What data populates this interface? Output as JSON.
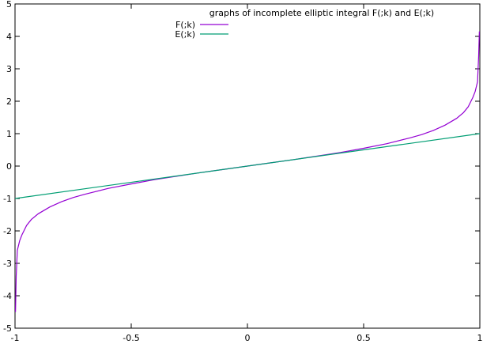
{
  "chart_data": {
    "type": "line",
    "title": "graphs of incomplete elliptic integral F(;k) and E(;k)",
    "xlabel": "",
    "ylabel": "",
    "xlim": [
      -1,
      1
    ],
    "ylim": [
      -5,
      5
    ],
    "grid": false,
    "legend_position": "top-center",
    "x_ticks": [
      -1,
      -0.5,
      0,
      0.5,
      1
    ],
    "x_tick_labels": [
      "-1",
      "-0.5",
      "0",
      "0.5",
      "1"
    ],
    "y_ticks": [
      -5,
      -4,
      -3,
      -2,
      -1,
      0,
      1,
      2,
      3,
      4,
      5
    ],
    "y_tick_labels": [
      "-5",
      "-4",
      "-3",
      "-2",
      "-1",
      "0",
      "1",
      "2",
      "3",
      "4",
      "5"
    ],
    "series": [
      {
        "name": "F(;k)",
        "color": "#9400d3",
        "x": [
          -0.998,
          -0.995,
          -0.99,
          -0.98,
          -0.97,
          -0.95,
          -0.93,
          -0.9,
          -0.85,
          -0.8,
          -0.75,
          -0.7,
          -0.6,
          -0.5,
          -0.4,
          -0.3,
          -0.2,
          -0.1,
          0,
          0.1,
          0.2,
          0.3,
          0.4,
          0.5,
          0.6,
          0.7,
          0.75,
          0.8,
          0.85,
          0.9,
          0.93,
          0.95,
          0.97,
          0.98,
          0.99,
          0.995,
          0.998
        ],
        "y": [
          -4.5,
          -3.4,
          -2.6,
          -2.3,
          -2.12,
          -1.83,
          -1.65,
          -1.47,
          -1.26,
          -1.1,
          -0.97,
          -0.87,
          -0.69,
          -0.55,
          -0.42,
          -0.31,
          -0.2,
          -0.1,
          0,
          0.1,
          0.2,
          0.31,
          0.42,
          0.55,
          0.69,
          0.87,
          0.97,
          1.1,
          1.26,
          1.47,
          1.65,
          1.83,
          2.12,
          2.3,
          2.6,
          3.4,
          4.15
        ]
      },
      {
        "name": "E(;k)",
        "color": "#009e73",
        "x": [
          -1,
          1
        ],
        "y": [
          -1,
          1
        ]
      }
    ]
  }
}
